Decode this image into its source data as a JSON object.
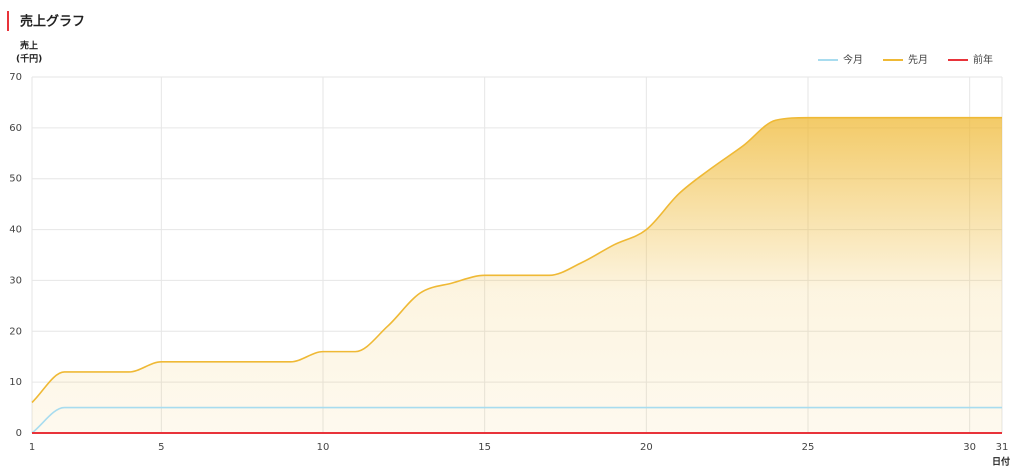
{
  "chart_data": {
    "type": "line",
    "title": "売上グラフ",
    "y_label_lines": [
      "売上",
      "(千円)"
    ],
    "x_label": "日付",
    "x": [
      1,
      2,
      3,
      4,
      5,
      6,
      7,
      8,
      9,
      10,
      11,
      12,
      13,
      14,
      15,
      16,
      17,
      18,
      19,
      20,
      21,
      22,
      23,
      24,
      25,
      26,
      27,
      28,
      29,
      30,
      31
    ],
    "series": [
      {
        "name": "今月",
        "color": "#a8dcef",
        "fill": false,
        "values": [
          0,
          5,
          5,
          5,
          5,
          5,
          5,
          5,
          5,
          5,
          5,
          5,
          5,
          5,
          5,
          5,
          5,
          5,
          5,
          5,
          5,
          5,
          5,
          5,
          5,
          5,
          5,
          5,
          5,
          5,
          5
        ]
      },
      {
        "name": "先月",
        "color": "#efb935",
        "fill": true,
        "values": [
          6,
          12,
          12,
          12,
          14,
          14,
          14,
          14,
          14,
          16,
          16,
          21,
          27.5,
          29.5,
          31,
          31,
          31,
          33.5,
          37,
          40,
          47,
          52,
          56.5,
          61.5,
          62,
          62,
          62,
          62,
          62,
          62,
          62
        ]
      },
      {
        "name": "前年",
        "color": "#e8333a",
        "fill": false,
        "values": [
          0,
          0,
          0,
          0,
          0,
          0,
          0,
          0,
          0,
          0,
          0,
          0,
          0,
          0,
          0,
          0,
          0,
          0,
          0,
          0,
          0,
          0,
          0,
          0,
          0,
          0,
          0,
          0,
          0,
          0,
          0
        ]
      }
    ],
    "xlim": [
      1,
      31
    ],
    "xticks": [
      1,
      5,
      10,
      15,
      20,
      25,
      30,
      31
    ],
    "ylim": [
      0,
      70
    ],
    "yticks": [
      0,
      10,
      20,
      30,
      40,
      50,
      60,
      70
    ],
    "grid": true,
    "legend": "top-right"
  }
}
